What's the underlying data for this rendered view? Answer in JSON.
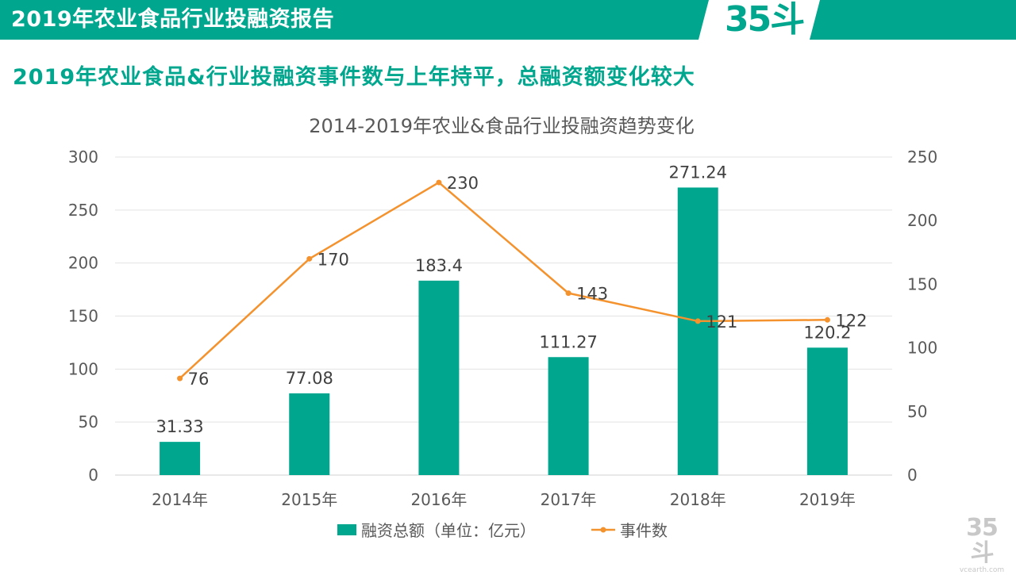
{
  "header": {
    "title": "2019年农业食品行业投融资报告",
    "logo_text": "35斗",
    "bar_color": "#00a78e"
  },
  "subtitle": "2019年农业食品&行业投融资事件数与上年持平，总融资额变化较大",
  "watermark": {
    "logo_text": "35斗",
    "domain": "vcearth.com"
  },
  "chart_data": {
    "type": "bar",
    "title": "2014-2019年农业&食品行业投融资趋势变化",
    "categories": [
      "2014年",
      "2015年",
      "2016年",
      "2017年",
      "2018年",
      "2019年"
    ],
    "series": [
      {
        "name": "融资总额（单位：亿元）",
        "type": "bar",
        "axis": "left",
        "color": "#00a78e",
        "values": [
          31.33,
          77.08,
          183.4,
          111.27,
          271.24,
          120.2
        ],
        "labels": [
          "31.33",
          "77.08",
          "183.4",
          "111.27",
          "271.24",
          "120.2"
        ]
      },
      {
        "name": "事件数",
        "type": "line",
        "axis": "right",
        "color": "#f4922e",
        "values": [
          76,
          170,
          230,
          143,
          121,
          122
        ],
        "labels": [
          "76",
          "170",
          "230",
          "143",
          "121",
          "122"
        ]
      }
    ],
    "y_left": {
      "min": 0,
      "max": 300,
      "ticks": [
        "0",
        "50",
        "100",
        "150",
        "200",
        "250",
        "300"
      ]
    },
    "y_right": {
      "min": 0,
      "max": 250,
      "ticks": [
        "0",
        "50",
        "100",
        "150",
        "200",
        "250"
      ]
    },
    "grid": true,
    "legend_position": "bottom"
  }
}
